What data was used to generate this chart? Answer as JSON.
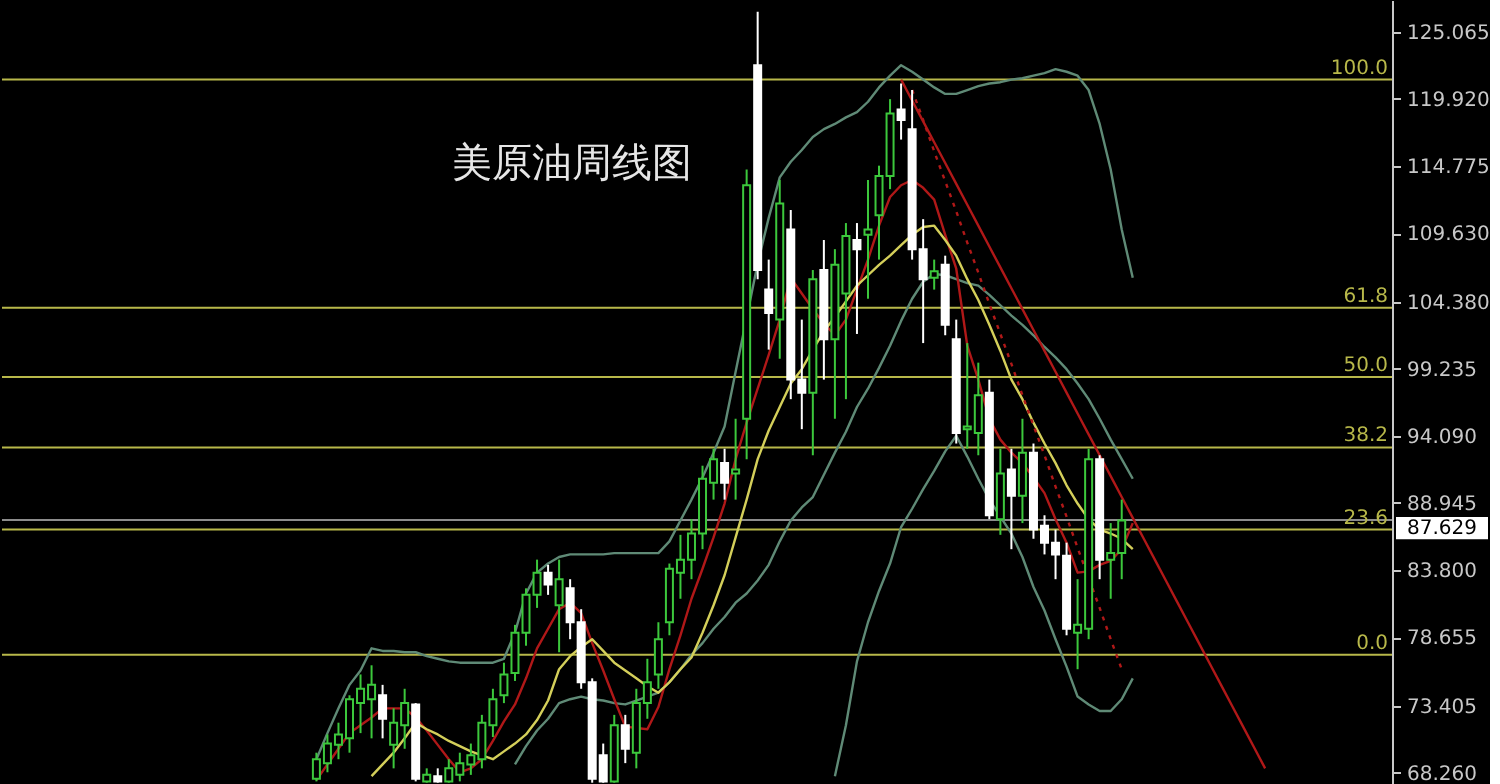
{
  "chart_data": {
    "type": "candlestick",
    "title": "美原油周线图",
    "categories": [
      null,
      null,
      null,
      null,
      null,
      null,
      null,
      null,
      null,
      null,
      null,
      null,
      null,
      null,
      null,
      null,
      null,
      null,
      null,
      null,
      null,
      null,
      null,
      null,
      null,
      null,
      null,
      null,
      null,
      null,
      null,
      null,
      null,
      null,
      null,
      null,
      null,
      null,
      null,
      null,
      null,
      null,
      null,
      null,
      null,
      null,
      null,
      null,
      null,
      null,
      null,
      null,
      null,
      null,
      null,
      null,
      null,
      null,
      null,
      null,
      null,
      null,
      null,
      null,
      null,
      null,
      null,
      null,
      null,
      null,
      null,
      null,
      null,
      null,
      null,
      null,
      null,
      null,
      null,
      null,
      null,
      null,
      null,
      null,
      null,
      null,
      null,
      null,
      null,
      null,
      null,
      null,
      null,
      null,
      null,
      null,
      null,
      null,
      null,
      null,
      null,
      null,
      null,
      null,
      null,
      null,
      null,
      null,
      null,
      null,
      null,
      null,
      null,
      null,
      null,
      null,
      null,
      null,
      null,
      null,
      null,
      null,
      null,
      null,
      null,
      null
    ],
    "ohlc": [
      null,
      null,
      null,
      null,
      null,
      null,
      null,
      null,
      null,
      null,
      null,
      null,
      null,
      null,
      null,
      null,
      null,
      null,
      null,
      null,
      null,
      null,
      null,
      null,
      null,
      null,
      null,
      null,
      [
        67.8,
        69.8,
        67.6,
        69.3
      ],
      [
        69.0,
        71.2,
        68.3,
        70.5
      ],
      [
        70.4,
        72.1,
        69.3,
        71.2
      ],
      [
        70.9,
        74.2,
        69.8,
        73.9
      ],
      [
        73.6,
        75.8,
        71.3,
        74.7
      ],
      [
        73.9,
        76.5,
        70.9,
        75.0
      ],
      [
        74.2,
        75.0,
        70.9,
        72.4
      ],
      [
        70.4,
        73.2,
        68.6,
        72.1
      ],
      [
        71.9,
        74.7,
        70.1,
        73.6
      ],
      [
        73.5,
        73.6,
        67.6,
        67.8
      ],
      [
        67.6,
        68.6,
        67.5,
        68.1
      ],
      [
        68.0,
        68.6,
        67.5,
        67.6
      ],
      [
        67.6,
        69.3,
        67.5,
        68.6
      ],
      [
        68.1,
        69.8,
        67.6,
        69.0
      ],
      [
        68.9,
        70.5,
        68.1,
        69.6
      ],
      [
        69.3,
        72.7,
        68.6,
        72.1
      ],
      [
        71.9,
        74.7,
        71.0,
        73.9
      ],
      [
        74.2,
        76.7,
        73.6,
        75.8
      ],
      [
        75.9,
        79.6,
        75.3,
        79.0
      ],
      [
        79.0,
        82.4,
        78.0,
        81.9
      ],
      [
        81.9,
        84.6,
        80.9,
        83.6
      ],
      [
        83.6,
        84.2,
        81.9,
        82.7
      ],
      [
        81.1,
        84.6,
        77.5,
        83.1
      ],
      [
        82.4,
        83.1,
        78.5,
        79.8
      ],
      [
        79.8,
        80.8,
        74.7,
        75.2
      ],
      [
        75.2,
        75.5,
        67.5,
        67.8
      ],
      [
        69.6,
        70.5,
        67.5,
        67.6
      ],
      [
        67.6,
        72.7,
        67.5,
        71.9
      ],
      [
        71.9,
        72.7,
        69.0,
        70.1
      ],
      [
        69.8,
        74.7,
        68.6,
        73.6
      ],
      [
        73.6,
        77.0,
        72.4,
        75.2
      ],
      [
        75.8,
        79.8,
        74.7,
        78.5
      ],
      [
        79.8,
        84.3,
        78.8,
        83.9
      ],
      [
        83.6,
        86.5,
        81.6,
        84.6
      ],
      [
        84.6,
        87.7,
        83.1,
        86.6
      ],
      [
        86.6,
        91.8,
        85.4,
        90.8
      ],
      [
        90.5,
        93.1,
        89.2,
        92.3
      ],
      [
        92.0,
        93.1,
        89.2,
        90.5
      ],
      [
        91.2,
        95.4,
        89.2,
        91.5
      ],
      [
        95.4,
        114.5,
        92.3,
        113.3
      ],
      [
        122.5,
        126.6,
        106.1,
        106.8
      ],
      [
        105.3,
        107.6,
        100.7,
        103.5
      ],
      [
        103.0,
        113.7,
        100.0,
        111.9
      ],
      [
        109.9,
        111.4,
        96.9,
        98.4
      ],
      [
        98.4,
        103.0,
        94.6,
        97.4
      ],
      [
        97.4,
        106.8,
        92.6,
        106.1
      ],
      [
        106.8,
        109.1,
        98.4,
        101.5
      ],
      [
        101.5,
        108.4,
        95.4,
        107.2
      ],
      [
        105.0,
        110.4,
        96.9,
        109.4
      ],
      [
        109.1,
        110.4,
        101.9,
        108.4
      ],
      [
        109.5,
        113.7,
        104.6,
        109.9
      ],
      [
        111.0,
        114.8,
        107.6,
        114.0
      ],
      [
        114.0,
        119.9,
        113.0,
        118.8
      ],
      [
        119.1,
        121.1,
        116.8,
        118.3
      ],
      [
        117.6,
        120.6,
        107.6,
        108.4
      ],
      [
        108.4,
        110.7,
        101.2,
        106.1
      ],
      [
        106.2,
        107.6,
        105.3,
        106.7
      ],
      [
        107.2,
        107.9,
        101.8,
        102.6
      ],
      [
        101.5,
        103.0,
        93.5,
        94.3
      ],
      [
        94.6,
        101.2,
        93.1,
        94.8
      ],
      [
        94.3,
        99.7,
        92.6,
        97.2
      ],
      [
        97.4,
        98.4,
        87.7,
        88.0
      ],
      [
        87.7,
        93.1,
        86.5,
        91.2
      ],
      [
        91.5,
        93.1,
        85.4,
        89.5
      ],
      [
        89.5,
        95.4,
        87.4,
        92.8
      ],
      [
        92.8,
        93.5,
        86.2,
        86.9
      ],
      [
        87.2,
        88.0,
        85.0,
        85.9
      ],
      [
        85.9,
        86.9,
        83.1,
        85.0
      ],
      [
        84.9,
        85.9,
        78.8,
        79.3
      ],
      [
        79.0,
        83.1,
        76.2,
        79.6
      ],
      [
        79.3,
        93.1,
        78.5,
        92.3
      ],
      [
        92.3,
        92.6,
        83.1,
        84.6
      ],
      [
        84.6,
        87.4,
        81.6,
        85.1
      ],
      [
        85.1,
        89.2,
        83.1,
        87.6
      ],
      null,
      null,
      null,
      null,
      null,
      null,
      null,
      null,
      null,
      null,
      null,
      null,
      null,
      null,
      null,
      null,
      null,
      null,
      null,
      null,
      null,
      null,
      null,
      null
    ],
    "colors": [
      null,
      null,
      null,
      null,
      null,
      null,
      null,
      null,
      null,
      null,
      null,
      null,
      null,
      null,
      null,
      null,
      null,
      null,
      null,
      null,
      null,
      null,
      null,
      null,
      null,
      null,
      null,
      null,
      "#3cc83c",
      "#3cc83c",
      "#3cc83c",
      "#3cc83c",
      "#3cc83c",
      "#3cc83c",
      "#ffffff",
      "#3cc83c",
      "#3cc83c",
      "#ffffff",
      "#3cc83c",
      "#ffffff",
      "#3cc83c",
      "#3cc83c",
      "#3cc83c",
      "#3cc83c",
      "#3cc83c",
      "#3cc83c",
      "#3cc83c",
      "#3cc83c",
      "#3cc83c",
      "#ffffff",
      "#3cc83c",
      "#ffffff",
      "#ffffff",
      "#ffffff",
      "#ffffff",
      "#3cc83c",
      "#ffffff",
      "#3cc83c",
      "#3cc83c",
      "#3cc83c",
      "#3cc83c",
      "#3cc83c",
      "#3cc83c",
      "#3cc83c",
      "#3cc83c",
      "#ffffff",
      "#3cc83c",
      "#3cc83c",
      "#ffffff",
      "#ffffff",
      "#3cc83c",
      "#ffffff",
      "#ffffff",
      "#3cc83c",
      "#ffffff",
      "#3cc83c",
      "#3cc83c",
      "#ffffff",
      "#3cc83c",
      "#3cc83c",
      "#3cc83c",
      "#ffffff",
      "#ffffff",
      "#ffffff",
      "#3cc83c",
      "#ffffff",
      "#ffffff",
      "#3cc83c",
      "#3cc83c",
      "#ffffff",
      "#3cc83c",
      "#ffffff",
      "#3cc83c",
      "#ffffff",
      "#ffffff",
      "#ffffff",
      "#ffffff",
      "#3cc83c",
      "#3cc83c",
      "#ffffff",
      "#3cc83c",
      "#3cc83c",
      null,
      null,
      null,
      null,
      null,
      null,
      null,
      null,
      null,
      null,
      null,
      null,
      null,
      null,
      null,
      null,
      null,
      null,
      null,
      null,
      null,
      null,
      null,
      null
    ],
    "series": [
      {
        "type": "line",
        "color": "#5f8a76",
        "values": [
          null,
          null,
          null,
          null,
          null,
          null,
          null,
          null,
          null,
          null,
          null,
          null,
          null,
          null,
          null,
          null,
          null,
          null,
          null,
          null,
          null,
          null,
          null,
          null,
          null,
          null,
          null,
          null,
          69.3,
          71.3,
          73.2,
          75.0,
          76.1,
          77.8,
          77.6,
          77.6,
          77.5,
          77.5,
          77.2,
          77.0,
          76.8,
          76.7,
          76.7,
          76.7,
          76.7,
          77.0,
          79.0,
          82.0,
          83.6,
          84.3,
          84.8,
          85.0,
          85.0,
          85.0,
          85.0,
          85.1,
          85.1,
          85.1,
          85.1,
          85.1,
          86.0,
          87.6,
          89.2,
          90.9,
          92.8,
          94.8,
          99.0,
          null,
          107.3,
          110.8,
          113.9,
          115.1,
          116.0,
          117.0,
          117.6,
          118.0,
          118.5,
          118.9,
          119.7,
          120.8,
          121.7,
          122.5,
          122.0,
          121.4,
          120.8,
          120.3,
          120.3,
          120.6,
          120.9,
          121.1,
          121.2,
          121.4,
          121.5,
          121.7,
          121.9,
          122.2,
          122.0,
          121.7,
          120.6,
          118.0,
          114.5,
          109.9,
          106.2,
          null,
          null,
          null,
          null,
          null,
          null,
          null,
          null,
          null,
          null,
          null,
          null,
          null,
          null,
          null,
          null,
          null,
          null,
          null,
          null,
          null,
          null,
          null
        ]
      },
      {
        "type": "line",
        "color": "#5f8a76",
        "values": [
          null,
          null,
          null,
          null,
          null,
          null,
          null,
          null,
          null,
          null,
          null,
          null,
          null,
          null,
          null,
          null,
          null,
          null,
          null,
          null,
          null,
          null,
          null,
          null,
          null,
          null,
          null,
          null,
          null,
          null,
          null,
          null,
          null,
          null,
          null,
          null,
          null,
          null,
          null,
          null,
          null,
          null,
          null,
          null,
          null,
          null,
          68.9,
          70.3,
          71.5,
          72.4,
          73.6,
          73.9,
          74.1,
          73.9,
          73.8,
          73.6,
          73.5,
          73.8,
          74.1,
          74.4,
          75.2,
          76.2,
          77.3,
          78.2,
          79.3,
          80.2,
          81.3,
          82.0,
          83.0,
          84.2,
          86.0,
          87.6,
          88.6,
          89.4,
          91.1,
          92.8,
          94.4,
          96.3,
          97.7,
          99.3,
          101.0,
          102.9,
          104.6,
          105.9,
          106.5,
          106.4,
          106.1,
          105.8,
          105.6,
          104.9,
          104.1,
          103.3,
          102.6,
          101.8,
          100.9,
          100.1,
          99.2,
          98.1,
          96.9,
          95.4,
          93.8,
          92.3,
          90.8,
          null,
          null,
          null,
          null,
          null,
          null,
          null,
          null,
          null,
          null,
          null,
          null,
          null,
          null,
          null,
          null,
          null,
          null,
          null,
          null,
          null,
          null,
          null
        ]
      },
      {
        "type": "line",
        "color": "#5f8a76",
        "values": [
          null,
          null,
          null,
          null,
          null,
          null,
          null,
          null,
          null,
          null,
          null,
          null,
          null,
          null,
          null,
          null,
          null,
          null,
          null,
          null,
          null,
          null,
          null,
          null,
          null,
          null,
          null,
          null,
          null,
          null,
          null,
          null,
          null,
          null,
          null,
          null,
          null,
          null,
          null,
          null,
          null,
          null,
          null,
          null,
          null,
          null,
          null,
          null,
          null,
          null,
          null,
          null,
          null,
          null,
          null,
          null,
          null,
          null,
          null,
          null,
          null,
          null,
          null,
          null,
          null,
          null,
          null,
          null,
          null,
          null,
          null,
          null,
          null,
          null,
          null,
          68.0,
          71.9,
          76.8,
          79.8,
          82.2,
          84.3,
          87.1,
          88.5,
          90.0,
          91.4,
          92.9,
          94.1,
          92.5,
          90.8,
          89.2,
          87.9,
          86.6,
          84.8,
          82.5,
          80.7,
          78.5,
          76.4,
          74.1,
          73.5,
          73.0,
          73.0,
          73.9,
          75.5,
          null,
          null,
          null,
          null,
          null,
          null,
          null,
          null,
          null,
          null,
          null,
          null,
          null,
          null,
          null,
          null,
          null,
          null,
          null,
          null,
          null,
          null,
          null
        ]
      },
      {
        "type": "line",
        "color": "#b01818",
        "values": [
          null,
          null,
          null,
          null,
          null,
          null,
          null,
          null,
          null,
          null,
          null,
          null,
          null,
          null,
          null,
          null,
          null,
          null,
          null,
          null,
          null,
          null,
          null,
          null,
          null,
          null,
          null,
          null,
          67.7,
          68.9,
          70.1,
          71.3,
          71.9,
          72.5,
          73.2,
          73.2,
          73.2,
          72.5,
          71.5,
          70.4,
          69.3,
          68.3,
          68.6,
          69.3,
          70.7,
          72.2,
          73.5,
          75.5,
          77.8,
          79.3,
          80.8,
          81.3,
          80.5,
          78.2,
          76.1,
          73.9,
          71.8,
          null,
          71.6,
          73.3,
          76.2,
          78.8,
          81.6,
          83.9,
          86.3,
          88.9,
          92.3,
          95.1,
          97.7,
          100.3,
          103.0,
          106.2,
          105.0,
          103.8,
          102.7,
          101.8,
          103.0,
          105.3,
          107.6,
          110.2,
          112.4,
          113.3,
          113.7,
          113.1,
          112.2,
          109.5,
          106.9,
          101.0,
          98.4,
          95.4,
          93.8,
          92.8,
          92.0,
          90.9,
          89.7,
          87.7,
          85.9,
          83.6,
          83.7,
          84.2,
          84.5,
          85.4,
          87.4,
          null,
          null,
          null,
          null,
          null,
          null,
          null,
          null,
          null,
          null,
          null,
          null,
          null,
          null,
          null,
          null,
          null,
          null,
          null,
          null,
          null,
          null,
          null
        ]
      },
      {
        "type": "line",
        "color": "#d4cf5a",
        "values": [
          null,
          null,
          null,
          null,
          null,
          null,
          null,
          null,
          null,
          null,
          null,
          null,
          null,
          null,
          null,
          null,
          null,
          null,
          null,
          null,
          null,
          null,
          null,
          null,
          null,
          null,
          null,
          null,
          null,
          null,
          null,
          null,
          null,
          68.0,
          68.9,
          69.8,
          70.9,
          72.1,
          71.6,
          71.2,
          70.7,
          70.3,
          69.9,
          69.6,
          69.3,
          69.9,
          70.5,
          71.2,
          72.3,
          73.8,
          76.2,
          77.2,
          77.9,
          78.5,
          77.6,
          76.7,
          76.1,
          75.5,
          74.9,
          74.4,
          75.2,
          76.2,
          77.1,
          79.0,
          81.1,
          83.4,
          86.3,
          89.2,
          92.3,
          94.5,
          96.3,
          98.1,
          99.2,
          100.7,
          102.1,
          103.2,
          104.4,
          105.6,
          106.4,
          107.2,
          107.9,
          108.7,
          109.5,
          110.1,
          110.2,
          109.1,
          107.9,
          106.1,
          104.5,
          102.6,
          100.6,
          98.4,
          96.9,
          95.1,
          93.5,
          92.0,
          90.3,
          88.9,
          87.7,
          86.9,
          86.6,
          86.2,
          85.4,
          null,
          null,
          null,
          null,
          null,
          null,
          null,
          null,
          null,
          null,
          null,
          null,
          null,
          null,
          null,
          null,
          null,
          null,
          null,
          null,
          null,
          null,
          null
        ]
      },
      {
        "type": "line",
        "color": "#b01818",
        "values": [
          null,
          null,
          null,
          null,
          null,
          null,
          null,
          null,
          null,
          null,
          null,
          null,
          null,
          null,
          null,
          null,
          null,
          null,
          null,
          null,
          null,
          null,
          null,
          null,
          null,
          null,
          null,
          null,
          null,
          null,
          null,
          null,
          null,
          null,
          null,
          null,
          null,
          null,
          null,
          null,
          null,
          null,
          null,
          null,
          null,
          null,
          null,
          null,
          null,
          null,
          null,
          null,
          null,
          null,
          null,
          null,
          null,
          null,
          null,
          null,
          null,
          null,
          null,
          null,
          null,
          null,
          null,
          null,
          null,
          null,
          null,
          null,
          null,
          null,
          null,
          null,
          null,
          null,
          null,
          null,
          null,
          121.4,
          119.8,
          118.2,
          116.6,
          115.0,
          113.4,
          111.8,
          110.2,
          108.6,
          107.0,
          105.4,
          103.8,
          102.2,
          100.6,
          99.0,
          97.4,
          95.8,
          94.2,
          92.6,
          91.0,
          89.4,
          87.8,
          86.2,
          84.6,
          83.0,
          81.4,
          79.8,
          78.2,
          76.6,
          75.0,
          73.4,
          71.8,
          70.2,
          68.6,
          null,
          null,
          null,
          null,
          null,
          null,
          null,
          null,
          null,
          null,
          null
        ]
      },
      {
        "type": "line",
        "color": "#b01818",
        "line_style": "dotted",
        "values": [
          null,
          null,
          null,
          null,
          null,
          null,
          null,
          null,
          null,
          null,
          null,
          null,
          null,
          null,
          null,
          null,
          null,
          null,
          null,
          null,
          null,
          null,
          null,
          null,
          null,
          null,
          null,
          null,
          null,
          null,
          null,
          null,
          null,
          null,
          null,
          null,
          null,
          null,
          null,
          null,
          null,
          null,
          null,
          null,
          null,
          null,
          null,
          null,
          null,
          null,
          null,
          null,
          null,
          null,
          null,
          null,
          null,
          null,
          null,
          null,
          null,
          null,
          null,
          null,
          null,
          null,
          null,
          null,
          null,
          null,
          null,
          null,
          null,
          null,
          null,
          null,
          null,
          null,
          null,
          null,
          null,
          null,
          120.6,
          118.3,
          115.9,
          113.6,
          111.3,
          108.9,
          106.6,
          104.2,
          101.9,
          99.6,
          97.2,
          94.9,
          92.6,
          90.2,
          87.9,
          85.5,
          83.2,
          80.9,
          78.5,
          76.2,
          null,
          null,
          null,
          null,
          null,
          null,
          null,
          null,
          null,
          null,
          null,
          null,
          null,
          null,
          null,
          null,
          null,
          null,
          null,
          null,
          null,
          null,
          null,
          null
        ]
      }
    ],
    "ylim": [
      67.4,
      127.5
    ],
    "yticks": [
      125.065,
      {
        "value": 119.92,
        "label": "119.920"
      },
      114.775,
      {
        "value": 109.63,
        "label": "109.630"
      },
      {
        "value": 104.38,
        "label": "104.380"
      },
      99.235,
      {
        "value": 94.09,
        "label": "94.090"
      },
      88.945,
      {
        "value": 83.8,
        "label": "83.800"
      },
      78.655,
      73.405,
      {
        "value": 68.26,
        "label": "68.260"
      }
    ],
    "tick_labels": "y",
    "ref_lines": [
      {
        "axis": "y",
        "value": 87.629,
        "label": "87.629",
        "color": "#8c8c8c"
      },
      {
        "axis": "y",
        "value": 121.4,
        "color": "#b8b84a"
      },
      {
        "axis": "y",
        "value": 103.9,
        "color": "#b8b84a"
      },
      {
        "axis": "y",
        "value": 98.6,
        "color": "#b8b84a"
      },
      {
        "axis": "y",
        "value": 93.2,
        "color": "#b8b84a"
      },
      {
        "axis": "y",
        "value": 86.9,
        "color": "#b8b84a"
      },
      {
        "axis": "y",
        "value": 77.3,
        "color": "#b8b84a"
      }
    ],
    "annotations": [
      {
        "text": "100.0",
        "y": 121.4
      },
      {
        "text": "61.8",
        "y": 103.9
      },
      {
        "text": "50.0",
        "y": 98.6
      },
      {
        "text": "38.2",
        "y": 93.2
      },
      {
        "text": "23.6",
        "y": 86.9
      },
      {
        "text": "0.0",
        "y": 77.3
      }
    ]
  }
}
